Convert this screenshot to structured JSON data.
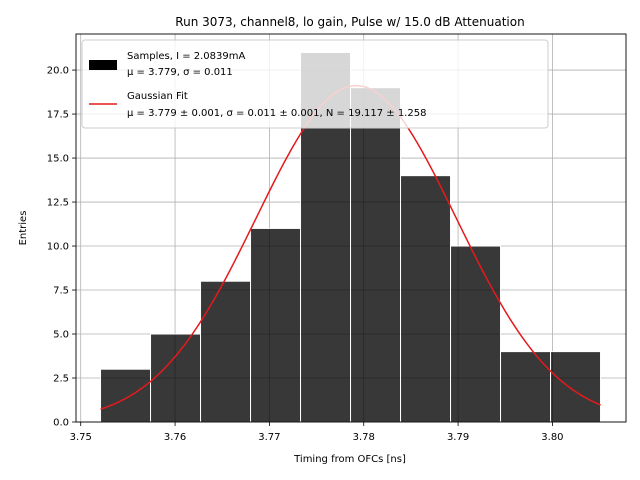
{
  "chart_data": {
    "type": "bar",
    "title": "Run 3073, channel8, lo gain, Pulse w/ 15.0 dB Attenuation",
    "xlabel": "Timing from OFCs [ns]",
    "ylabel": "Entries",
    "xlim": [
      3.7495,
      3.8078
    ],
    "ylim": [
      0,
      22.05
    ],
    "xticks": [
      3.75,
      3.76,
      3.77,
      3.78,
      3.79,
      3.8
    ],
    "xtick_labels": [
      "3.75",
      "3.76",
      "3.77",
      "3.78",
      "3.79",
      "3.80"
    ],
    "yticks": [
      0,
      2.5,
      5,
      7.5,
      10,
      12.5,
      15,
      17.5,
      20
    ],
    "ytick_labels": [
      "0.0",
      "2.5",
      "5.0",
      "7.5",
      "10.0",
      "12.5",
      "15.0",
      "17.5",
      "20.0"
    ],
    "grid": true,
    "legend_position": "top-left",
    "histogram": {
      "bin_edges": [
        3.7521,
        3.7574,
        3.7627,
        3.768,
        3.7733,
        3.7786,
        3.7839,
        3.7892,
        3.7945,
        3.7998,
        3.8051
      ],
      "values": [
        3,
        5,
        8,
        11,
        21,
        19,
        14,
        10,
        4,
        4
      ],
      "color": "#000000",
      "edgecolor": "#ffffff"
    },
    "fit": {
      "mu": 3.7792,
      "sigma": 0.0106,
      "amplitude": 19.117,
      "x_range": [
        3.7521,
        3.8051
      ],
      "color": "#e41a1c"
    },
    "legend": [
      {
        "line1": "Samples, I = 2.0839mA",
        "line2": "μ = 3.779, σ = 0.011"
      },
      {
        "line1": "Gaussian Fit",
        "line2": "μ = 3.779 ± 0.001, σ = 0.011 ± 0.001, N = 19.117 ± 1.258"
      }
    ]
  }
}
